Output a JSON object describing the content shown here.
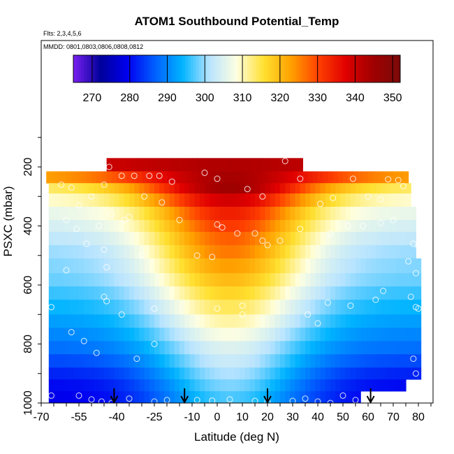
{
  "chart_data": {
    "type": "heatmap",
    "title": "ATOM1 Southbound Potential_Temp",
    "annotations": {
      "flights": "Flts: 2,3,4,5,6",
      "dates": "MMDD: 0801,0803,0806,0808,0812"
    },
    "xlabel": "Latitude (deg N)",
    "ylabel": "PSXC (mbar)",
    "xlim": [
      -70,
      85
    ],
    "ylim": [
      1000,
      0
    ],
    "x_ticks": [
      -70,
      -55,
      -40,
      -25,
      -10,
      0,
      10,
      20,
      30,
      40,
      50,
      60,
      70,
      80
    ],
    "x_tick_labels": [
      "-70",
      "-55",
      "-40",
      "-25",
      "-10",
      "0",
      "10",
      "20",
      "30",
      "40",
      "50",
      "60",
      "70",
      "80"
    ],
    "y_ticks": [
      200,
      400,
      600,
      800,
      1000
    ],
    "y_tick_labels": [
      "200",
      "400",
      "600",
      "800",
      "1000"
    ],
    "colorbar": {
      "min": 265,
      "max": 352,
      "ticks": [
        270,
        280,
        290,
        300,
        310,
        320,
        330,
        340,
        350
      ],
      "tick_labels": [
        "270",
        "280",
        "290",
        "300",
        "310",
        "320",
        "330",
        "340",
        "350"
      ],
      "colors": [
        "#7a20f0",
        "#00009a",
        "#0000f0",
        "#0060ff",
        "#00b4ff",
        "#b8e4ff",
        "#ffffe0",
        "#ffe030",
        "#ffa000",
        "#ff4000",
        "#e00000",
        "#a00000",
        "#7a0a0a"
      ]
    },
    "layers": [
      {
        "p_top": 170,
        "p_bot": 215,
        "x_min": -44,
        "x_max": 34,
        "theta_edge": 339,
        "theta_mid": 343,
        "tropics_width": 40
      },
      {
        "p_top": 215,
        "p_bot": 255,
        "x_min": -68,
        "x_max": 76,
        "theta_edge": 322,
        "theta_mid": 344,
        "tropics_width": 42
      },
      {
        "p_top": 255,
        "p_bot": 290,
        "x_min": -67,
        "x_max": 77,
        "theta_edge": 313,
        "theta_mid": 345,
        "tropics_width": 36
      },
      {
        "p_top": 290,
        "p_bot": 335,
        "x_min": -67,
        "x_max": 77,
        "theta_edge": 309,
        "theta_mid": 339,
        "tropics_width": 34
      },
      {
        "p_top": 335,
        "p_bot": 380,
        "x_min": -67,
        "x_max": 78,
        "theta_edge": 306,
        "theta_mid": 334,
        "tropics_width": 32
      },
      {
        "p_top": 380,
        "p_bot": 420,
        "x_min": -67,
        "x_max": 78,
        "theta_edge": 304,
        "theta_mid": 331,
        "tropics_width": 32
      },
      {
        "p_top": 420,
        "p_bot": 465,
        "x_min": -67,
        "x_max": 79,
        "theta_edge": 302,
        "theta_mid": 328,
        "tropics_width": 32
      },
      {
        "p_top": 465,
        "p_bot": 510,
        "x_min": -67,
        "x_max": 79,
        "theta_edge": 300,
        "theta_mid": 326,
        "tropics_width": 32
      },
      {
        "p_top": 510,
        "p_bot": 560,
        "x_min": -67,
        "x_max": 80,
        "theta_edge": 299,
        "theta_mid": 323,
        "tropics_width": 32
      },
      {
        "p_top": 560,
        "p_bot": 605,
        "x_min": -67,
        "x_max": 80,
        "theta_edge": 298,
        "theta_mid": 320,
        "tropics_width": 32
      },
      {
        "p_top": 605,
        "p_bot": 650,
        "x_min": -67,
        "x_max": 80,
        "theta_edge": 296,
        "theta_mid": 317,
        "tropics_width": 32
      },
      {
        "p_top": 650,
        "p_bot": 700,
        "x_min": -67,
        "x_max": 80,
        "theta_edge": 294,
        "theta_mid": 314,
        "tropics_width": 32
      },
      {
        "p_top": 700,
        "p_bot": 745,
        "x_min": -67,
        "x_max": 80,
        "theta_edge": 292,
        "theta_mid": 311,
        "tropics_width": 32
      },
      {
        "p_top": 745,
        "p_bot": 790,
        "x_min": -67,
        "x_max": 80,
        "theta_edge": 290,
        "theta_mid": 308,
        "tropics_width": 32
      },
      {
        "p_top": 790,
        "p_bot": 835,
        "x_min": -67,
        "x_max": 80,
        "theta_edge": 288,
        "theta_mid": 305,
        "tropics_width": 32
      },
      {
        "p_top": 835,
        "p_bot": 880,
        "x_min": -67,
        "x_max": 80,
        "theta_edge": 285,
        "theta_mid": 303,
        "tropics_width": 32
      },
      {
        "p_top": 880,
        "p_bot": 920,
        "x_min": -67,
        "x_max": 80,
        "theta_edge": 282,
        "theta_mid": 301,
        "tropics_width": 32
      },
      {
        "p_top": 920,
        "p_bot": 960,
        "x_min": -67,
        "x_max": 74,
        "theta_edge": 280,
        "theta_mid": 299,
        "tropics_width": 32
      },
      {
        "p_top": 960,
        "p_bot": 1000,
        "x_min": -67,
        "x_max": 56,
        "theta_edge": 279,
        "theta_mid": 297,
        "tropics_width": 32
      }
    ],
    "observations": [
      [
        -43,
        200
      ],
      [
        -38,
        230
      ],
      [
        -33,
        230
      ],
      [
        -27,
        230
      ],
      [
        -23,
        230
      ],
      [
        -18,
        250
      ],
      [
        -5,
        220
      ],
      [
        0,
        240
      ],
      [
        12,
        275
      ],
      [
        18,
        300
      ],
      [
        27,
        180
      ],
      [
        33,
        240
      ],
      [
        -62,
        260
      ],
      [
        -58,
        270
      ],
      [
        -50,
        300
      ],
      [
        -45,
        260
      ],
      [
        -55,
        330
      ],
      [
        -42,
        360
      ],
      [
        -37,
        380
      ],
      [
        -35,
        370
      ],
      [
        -29,
        300
      ],
      [
        -22,
        320
      ],
      [
        -15,
        380
      ],
      [
        -60,
        380
      ],
      [
        -56,
        410
      ],
      [
        -47,
        400
      ],
      [
        -52,
        460
      ],
      [
        -45,
        480
      ],
      [
        -44,
        540
      ],
      [
        -45,
        640
      ],
      [
        -44,
        655
      ],
      [
        -38,
        700
      ],
      [
        -30,
        500
      ],
      [
        -60,
        550
      ],
      [
        -58,
        760
      ],
      [
        -53,
        790
      ],
      [
        -48,
        830
      ],
      [
        -66,
        675
      ],
      [
        -25,
        680
      ],
      [
        -25,
        800
      ],
      [
        -32,
        850
      ],
      [
        0,
        395
      ],
      [
        2,
        405
      ],
      [
        -8,
        500
      ],
      [
        -2,
        505
      ],
      [
        8,
        425
      ],
      [
        15,
        425
      ],
      [
        18,
        450
      ],
      [
        20,
        465
      ],
      [
        25,
        450
      ],
      [
        33,
        410
      ],
      [
        41,
        325
      ],
      [
        46,
        305
      ],
      [
        54,
        240
      ],
      [
        60,
        300
      ],
      [
        65,
        310
      ],
      [
        68,
        242
      ],
      [
        72,
        245
      ],
      [
        74,
        265
      ],
      [
        52,
        400
      ],
      [
        45,
        425
      ],
      [
        58,
        400
      ],
      [
        65,
        390
      ],
      [
        70,
        380
      ],
      [
        78,
        460
      ],
      [
        80,
        470
      ],
      [
        76,
        520
      ],
      [
        79,
        560
      ],
      [
        66,
        620
      ],
      [
        77,
        640
      ],
      [
        79,
        675
      ],
      [
        80,
        680
      ],
      [
        78,
        850
      ],
      [
        79,
        900
      ],
      [
        63,
        650
      ],
      [
        53,
        670
      ],
      [
        44,
        660
      ],
      [
        36,
        700
      ],
      [
        40,
        730
      ],
      [
        10,
        670
      ],
      [
        10,
        700
      ],
      [
        0,
        680
      ],
      [
        -55,
        975
      ],
      [
        -50,
        988
      ],
      [
        -46,
        995
      ],
      [
        -42,
        1000
      ],
      [
        -35,
        985
      ],
      [
        -25,
        995
      ],
      [
        -20,
        990
      ],
      [
        -8,
        990
      ],
      [
        -2,
        992
      ],
      [
        5,
        988
      ],
      [
        15,
        993
      ],
      [
        20,
        995
      ],
      [
        30,
        993
      ],
      [
        35,
        985
      ],
      [
        40,
        995
      ],
      [
        45,
        1000
      ],
      [
        50,
        975
      ],
      [
        55,
        990
      ],
      [
        -66,
        975
      ]
    ],
    "flight_markers": [
      -41,
      -13,
      20,
      61
    ]
  }
}
